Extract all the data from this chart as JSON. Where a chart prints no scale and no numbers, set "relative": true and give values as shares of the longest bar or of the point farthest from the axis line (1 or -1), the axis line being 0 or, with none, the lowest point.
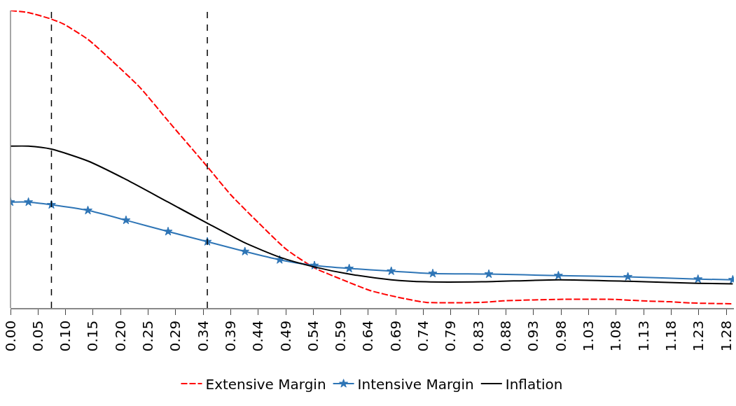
{
  "chart_data": {
    "type": "line",
    "relative": true,
    "xlim": [
      0,
      1.29
    ],
    "xticks": [
      {
        "value": 0,
        "label": "0.00"
      },
      {
        "value": 0.0491,
        "label": "0.05"
      },
      {
        "value": 0.0982,
        "label": "0.10"
      },
      {
        "value": 0.1473,
        "label": "0.15"
      },
      {
        "value": 0.1963,
        "label": "0.20"
      },
      {
        "value": 0.2454,
        "label": "0.25"
      },
      {
        "value": 0.2945,
        "label": "0.29"
      },
      {
        "value": 0.3436,
        "label": "0.34"
      },
      {
        "value": 0.3927,
        "label": "0.39"
      },
      {
        "value": 0.4418,
        "label": "0.44"
      },
      {
        "value": 0.4909,
        "label": "0.49"
      },
      {
        "value": 0.54,
        "label": "0.54"
      },
      {
        "value": 0.589,
        "label": "0.59"
      },
      {
        "value": 0.6381,
        "label": "0.64"
      },
      {
        "value": 0.6872,
        "label": "0.69"
      },
      {
        "value": 0.7363,
        "label": "0.74"
      },
      {
        "value": 0.7854,
        "label": "0.79"
      },
      {
        "value": 0.8345,
        "label": "0.83"
      },
      {
        "value": 0.8836,
        "label": "0.88"
      },
      {
        "value": 0.9327,
        "label": "0.93"
      },
      {
        "value": 0.9817,
        "label": "0.98"
      },
      {
        "value": 1.0308,
        "label": "1.03"
      },
      {
        "value": 1.0799,
        "label": "1.08"
      },
      {
        "value": 1.129,
        "label": "1.13"
      },
      {
        "value": 1.1781,
        "label": "1.18"
      },
      {
        "value": 1.2272,
        "label": "1.23"
      },
      {
        "value": 1.2763,
        "label": "1.28"
      }
    ],
    "legend": "bottom",
    "ref_lines": [
      {
        "axis": "x",
        "value": 0.073,
        "color": "#000000",
        "line_style": "dashed"
      },
      {
        "axis": "x",
        "value": 0.351,
        "color": "#000000",
        "line_style": "dashed"
      }
    ],
    "series": [
      {
        "name": "Extensive Margin",
        "color": "#ff0000",
        "line_style": "dashed",
        "marker": "none",
        "x": [
          0,
          0.032,
          0.073,
          0.094,
          0.138,
          0.181,
          0.231,
          0.281,
          0.351,
          0.393,
          0.443,
          0.492,
          0.542,
          0.592,
          0.641,
          0.691,
          0.741,
          0.84,
          0.878,
          0.977,
          1.076,
          1.126,
          1.176,
          1.213,
          1.288
        ],
        "values": [
          1,
          0.993,
          0.971,
          0.955,
          0.903,
          0.831,
          0.741,
          0.629,
          0.475,
          0.38,
          0.285,
          0.197,
          0.135,
          0.095,
          0.059,
          0.036,
          0.019,
          0.019,
          0.024,
          0.029,
          0.029,
          0.024,
          0.021,
          0.017,
          0.014
        ]
      },
      {
        "name": "Intensive Margin",
        "color": "#2e75b6",
        "line_style": "solid",
        "marker": "star",
        "x": [
          0,
          0.032,
          0.073,
          0.138,
          0.206,
          0.281,
          0.351,
          0.418,
          0.48,
          0.542,
          0.604,
          0.679,
          0.753,
          0.853,
          0.977,
          1.101,
          1.226,
          1.288
        ],
        "values": [
          0.356,
          0.356,
          0.347,
          0.328,
          0.295,
          0.257,
          0.223,
          0.19,
          0.162,
          0.143,
          0.133,
          0.124,
          0.116,
          0.114,
          0.109,
          0.105,
          0.097,
          0.095
        ]
      },
      {
        "name": "Inflation",
        "color": "#000000",
        "line_style": "solid",
        "marker": "none",
        "x": [
          0,
          0.032,
          0.073,
          0.138,
          0.206,
          0.281,
          0.351,
          0.418,
          0.48,
          0.542,
          0.604,
          0.679,
          0.741,
          0.84,
          0.977,
          1.101,
          1.226,
          1.288
        ],
        "values": [
          0.544,
          0.544,
          0.534,
          0.494,
          0.432,
          0.356,
          0.285,
          0.219,
          0.171,
          0.138,
          0.114,
          0.095,
          0.088,
          0.088,
          0.095,
          0.09,
          0.083,
          0.081
        ]
      }
    ]
  }
}
